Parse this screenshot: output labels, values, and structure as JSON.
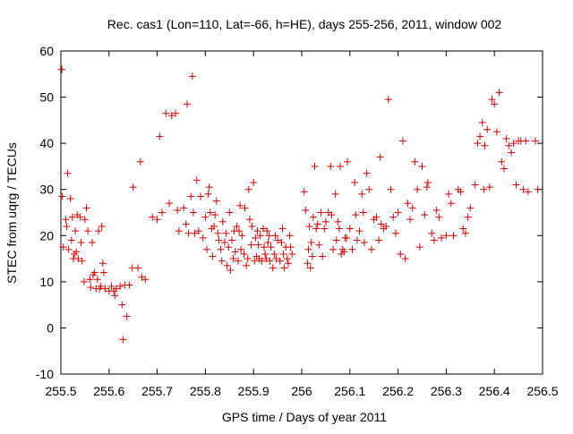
{
  "chart_data": {
    "type": "scatter",
    "title": "Rec. cas1 (Lon=110, Lat=-66, h=HE), days 255-256, 2011, window 002",
    "xlabel": "GPS time / Days of year 2011",
    "ylabel": "STEC from uqrg / TECUs",
    "xlim": [
      255.5,
      256.5
    ],
    "ylim": [
      -10,
      60
    ],
    "xticks": [
      255.5,
      255.6,
      255.7,
      255.8,
      255.9,
      256.0,
      256.1,
      256.2,
      256.3,
      256.4,
      256.5
    ],
    "xtick_labels": [
      "255.5",
      "255.6",
      "255.7",
      "255.8",
      "255.9",
      "256",
      "256.1",
      "256.2",
      "256.3",
      "256.4",
      "256.5"
    ],
    "yticks": [
      -10,
      0,
      10,
      20,
      30,
      40,
      50,
      60
    ],
    "ytick_labels": [
      "-10",
      "0",
      "10",
      "20",
      "30",
      "40",
      "50",
      "60"
    ],
    "grid": false,
    "marker": "+",
    "marker_color": "#cc0000",
    "series": [
      {
        "name": "STEC",
        "points": [
          [
            255.502,
            56
          ],
          [
            255.503,
            28.5
          ],
          [
            255.505,
            17.5
          ],
          [
            255.51,
            23.5
          ],
          [
            255.512,
            22
          ],
          [
            255.514,
            33.5
          ],
          [
            255.516,
            17
          ],
          [
            255.52,
            28
          ],
          [
            255.522,
            19
          ],
          [
            255.524,
            24
          ],
          [
            255.526,
            15
          ],
          [
            255.528,
            16
          ],
          [
            255.53,
            21
          ],
          [
            255.532,
            16.5
          ],
          [
            255.534,
            24.5
          ],
          [
            255.536,
            15
          ],
          [
            255.54,
            24
          ],
          [
            255.542,
            18.5
          ],
          [
            255.544,
            14.5
          ],
          [
            255.548,
            10
          ],
          [
            255.55,
            23.5
          ],
          [
            255.553,
            26
          ],
          [
            255.556,
            21
          ],
          [
            255.56,
            10.5
          ],
          [
            255.562,
            8.8
          ],
          [
            255.565,
            18.5
          ],
          [
            255.567,
            11.5
          ],
          [
            255.57,
            12
          ],
          [
            255.573,
            8.5
          ],
          [
            255.576,
            10.5
          ],
          [
            255.578,
            21
          ],
          [
            255.58,
            8.5
          ],
          [
            255.583,
            9
          ],
          [
            255.585,
            22
          ],
          [
            255.587,
            14
          ],
          [
            255.589,
            12
          ],
          [
            255.592,
            8.5
          ],
          [
            255.6,
            8
          ],
          [
            255.605,
            9
          ],
          [
            255.61,
            8
          ],
          [
            255.612,
            7
          ],
          [
            255.615,
            8.5
          ],
          [
            255.623,
            9
          ],
          [
            255.627,
            5
          ],
          [
            255.629,
            -2.5
          ],
          [
            255.633,
            9.3
          ],
          [
            255.637,
            2.5
          ],
          [
            255.642,
            9.3
          ],
          [
            255.648,
            13
          ],
          [
            255.65,
            30.5
          ],
          [
            255.66,
            13
          ],
          [
            255.665,
            36
          ],
          [
            255.668,
            11
          ],
          [
            255.675,
            10.5
          ],
          [
            255.69,
            24
          ],
          [
            255.7,
            23.5
          ],
          [
            255.705,
            41.5
          ],
          [
            255.71,
            25
          ],
          [
            255.718,
            46.5
          ],
          [
            255.725,
            27
          ],
          [
            255.73,
            46
          ],
          [
            255.738,
            46.5
          ],
          [
            255.742,
            25.5
          ],
          [
            255.745,
            21
          ],
          [
            255.755,
            26
          ],
          [
            255.76,
            22.5
          ],
          [
            255.762,
            48.5
          ],
          [
            255.765,
            20.5
          ],
          [
            255.77,
            28.5
          ],
          [
            255.773,
            54.5
          ],
          [
            255.775,
            25
          ],
          [
            255.778,
            20.5
          ],
          [
            255.782,
            32
          ],
          [
            255.786,
            21
          ],
          [
            255.79,
            28.5
          ],
          [
            255.795,
            19.5
          ],
          [
            255.8,
            24
          ],
          [
            255.803,
            17
          ],
          [
            255.806,
            29
          ],
          [
            255.808,
            30.5
          ],
          [
            255.81,
            25
          ],
          [
            255.813,
            21.5
          ],
          [
            255.815,
            15.5
          ],
          [
            255.818,
            22
          ],
          [
            255.82,
            24.5
          ],
          [
            255.823,
            27.5
          ],
          [
            255.826,
            20.5
          ],
          [
            255.828,
            19
          ],
          [
            255.832,
            17
          ],
          [
            255.834,
            14.5
          ],
          [
            255.836,
            23
          ],
          [
            255.84,
            18.5
          ],
          [
            255.843,
            20.5
          ],
          [
            255.845,
            13.5
          ],
          [
            255.848,
            17.5
          ],
          [
            255.85,
            25
          ],
          [
            255.852,
            12.5
          ],
          [
            255.855,
            19
          ],
          [
            255.858,
            15
          ],
          [
            255.86,
            21
          ],
          [
            255.862,
            16.5
          ],
          [
            255.865,
            22
          ],
          [
            255.868,
            14.5
          ],
          [
            255.87,
            21
          ],
          [
            255.872,
            26.5
          ],
          [
            255.874,
            17
          ],
          [
            255.876,
            20
          ],
          [
            255.88,
            16
          ],
          [
            255.882,
            26
          ],
          [
            255.885,
            13.5
          ],
          [
            255.888,
            15
          ],
          [
            255.89,
            30
          ],
          [
            255.892,
            23.5
          ],
          [
            255.895,
            18
          ],
          [
            255.897,
            22
          ],
          [
            255.9,
            31.5
          ],
          [
            255.902,
            14.5
          ],
          [
            255.904,
            19.5
          ],
          [
            255.906,
            15.5
          ],
          [
            255.908,
            21
          ],
          [
            255.91,
            18
          ],
          [
            255.912,
            15
          ],
          [
            255.914,
            20
          ],
          [
            255.917,
            14.5
          ],
          [
            255.92,
            21.5
          ],
          [
            255.922,
            17.5
          ],
          [
            255.924,
            16
          ],
          [
            255.926,
            15
          ],
          [
            255.928,
            21
          ],
          [
            255.93,
            18.5
          ],
          [
            255.932,
            20
          ],
          [
            255.934,
            14.5
          ],
          [
            255.936,
            17.5
          ],
          [
            255.94,
            13
          ],
          [
            255.943,
            16
          ],
          [
            255.945,
            20
          ],
          [
            255.947,
            15
          ],
          [
            255.95,
            19
          ],
          [
            255.955,
            14.5
          ],
          [
            255.958,
            18.5
          ],
          [
            255.96,
            21.5
          ],
          [
            255.962,
            16
          ],
          [
            255.964,
            13
          ],
          [
            255.967,
            17.5
          ],
          [
            255.97,
            15
          ],
          [
            255.972,
            14
          ],
          [
            255.975,
            20
          ],
          [
            255.977,
            17.5
          ],
          [
            255.98,
            16
          ],
          [
            256.005,
            29.5
          ],
          [
            256.008,
            25.5
          ],
          [
            256.012,
            14
          ],
          [
            256.014,
            17
          ],
          [
            256.016,
            22
          ],
          [
            256.018,
            13
          ],
          [
            256.02,
            18.5
          ],
          [
            256.022,
            15.5
          ],
          [
            256.024,
            24
          ],
          [
            256.027,
            35
          ],
          [
            256.03,
            21.5
          ],
          [
            256.033,
            22.5
          ],
          [
            256.036,
            18
          ],
          [
            256.04,
            25
          ],
          [
            256.043,
            15.5
          ],
          [
            256.047,
            21.5
          ],
          [
            256.05,
            23
          ],
          [
            256.055,
            25
          ],
          [
            256.06,
            35
          ],
          [
            256.062,
            24.5
          ],
          [
            256.065,
            17
          ],
          [
            256.07,
            29
          ],
          [
            256.072,
            19
          ],
          [
            256.075,
            23
          ],
          [
            256.078,
            21.5
          ],
          [
            256.08,
            35
          ],
          [
            256.082,
            16
          ],
          [
            256.085,
            17
          ],
          [
            256.088,
            16.5
          ],
          [
            256.09,
            19.5
          ],
          [
            256.093,
            19.5
          ],
          [
            256.095,
            36
          ],
          [
            256.1,
            21.5
          ],
          [
            256.105,
            17
          ],
          [
            256.11,
            31.5
          ],
          [
            256.112,
            24.5
          ],
          [
            256.115,
            19
          ],
          [
            256.12,
            21
          ],
          [
            256.125,
            29
          ],
          [
            256.128,
            25
          ],
          [
            256.13,
            18.5
          ],
          [
            256.135,
            33.5
          ],
          [
            256.14,
            30
          ],
          [
            256.145,
            17
          ],
          [
            256.15,
            23.5
          ],
          [
            256.155,
            24
          ],
          [
            256.16,
            19
          ],
          [
            256.163,
            37
          ],
          [
            256.165,
            22.5
          ],
          [
            256.17,
            21.5
          ],
          [
            256.175,
            22
          ],
          [
            256.18,
            49.5
          ],
          [
            256.185,
            30
          ],
          [
            256.19,
            24
          ],
          [
            256.195,
            20.5
          ],
          [
            256.2,
            25
          ],
          [
            256.205,
            16
          ],
          [
            256.21,
            40.5
          ],
          [
            256.215,
            15
          ],
          [
            256.22,
            27
          ],
          [
            256.225,
            23.5
          ],
          [
            256.23,
            26
          ],
          [
            256.235,
            36
          ],
          [
            256.24,
            30
          ],
          [
            256.245,
            17.5
          ],
          [
            256.25,
            35
          ],
          [
            256.255,
            24.5
          ],
          [
            256.26,
            30.5
          ],
          [
            256.262,
            31.5
          ],
          [
            256.27,
            20.5
          ],
          [
            256.275,
            19
          ],
          [
            256.28,
            25.5
          ],
          [
            256.285,
            24
          ],
          [
            256.29,
            19.5
          ],
          [
            256.3,
            20
          ],
          [
            256.305,
            29
          ],
          [
            256.31,
            27
          ],
          [
            256.315,
            20
          ],
          [
            256.325,
            30
          ],
          [
            256.33,
            29.5
          ],
          [
            256.335,
            21.5
          ],
          [
            256.34,
            20.5
          ],
          [
            256.345,
            24
          ],
          [
            256.35,
            26
          ],
          [
            256.36,
            31
          ],
          [
            256.365,
            40
          ],
          [
            256.37,
            41.5
          ],
          [
            256.375,
            44.5
          ],
          [
            256.378,
            30
          ],
          [
            256.38,
            39.5
          ],
          [
            256.385,
            43
          ],
          [
            256.39,
            30.5
          ],
          [
            256.395,
            49.5
          ],
          [
            256.4,
            48.5
          ],
          [
            256.405,
            42.5
          ],
          [
            256.41,
            51
          ],
          [
            256.415,
            36
          ],
          [
            256.42,
            34.5
          ],
          [
            256.425,
            41
          ],
          [
            256.43,
            39.5
          ],
          [
            256.435,
            38
          ],
          [
            256.44,
            40
          ],
          [
            256.445,
            31
          ],
          [
            256.45,
            40.5
          ],
          [
            256.455,
            40.5
          ],
          [
            256.46,
            30
          ],
          [
            256.465,
            40.5
          ],
          [
            256.47,
            29.5
          ],
          [
            256.485,
            40.5
          ],
          [
            256.49,
            30
          ]
        ]
      }
    ]
  }
}
